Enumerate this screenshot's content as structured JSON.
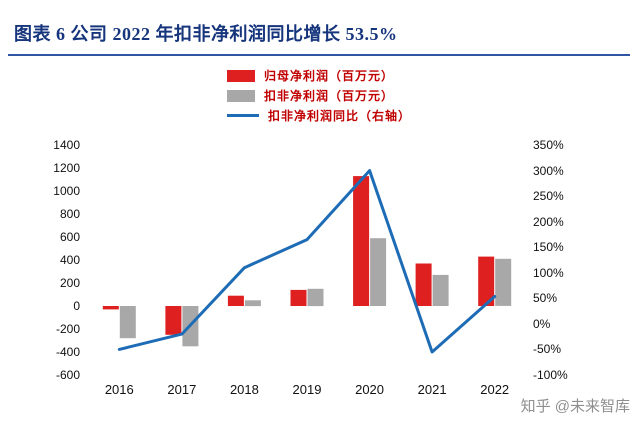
{
  "header": {
    "title": "图表 6  公司 2022 年扣非净利润同比增长 53.5%"
  },
  "legend": [
    {
      "label": "归母净利润（百万元）",
      "type": "bar",
      "color": "#df2020"
    },
    {
      "label": "扣非净利润（百万元）",
      "type": "bar",
      "color": "#a8a8a8"
    },
    {
      "label": "扣非净利润同比（右轴）",
      "type": "line",
      "color": "#1e6cb5"
    }
  ],
  "chart_data": {
    "type": "combo-bar-line",
    "title": "图表 6  公司 2022 年扣非净利润同比增长 53.5%",
    "categories": [
      "2016",
      "2017",
      "2018",
      "2019",
      "2020",
      "2021",
      "2022"
    ],
    "series": [
      {
        "name": "归母净利润（百万元）",
        "type": "bar",
        "axis": "left",
        "color": "#df2020",
        "values": [
          -30,
          -250,
          90,
          140,
          1130,
          370,
          430
        ]
      },
      {
        "name": "扣非净利润（百万元）",
        "type": "bar",
        "axis": "left",
        "color": "#a8a8a8",
        "values": [
          -280,
          -350,
          50,
          150,
          590,
          270,
          410
        ]
      },
      {
        "name": "扣非净利润同比（右轴）",
        "type": "line",
        "axis": "right",
        "color": "#1e6cb5",
        "values": [
          -50,
          -20,
          110,
          165,
          300,
          -55,
          53.5
        ]
      }
    ],
    "left_axis": {
      "min": -600,
      "max": 1400,
      "step": 200,
      "ticks": [
        "1400",
        "1200",
        "1000",
        "800",
        "600",
        "400",
        "200",
        "0",
        "-200",
        "-400",
        "-600"
      ]
    },
    "right_axis": {
      "min": -100,
      "max": 350,
      "step": 50,
      "ticks": [
        "350%",
        "300%",
        "250%",
        "200%",
        "150%",
        "100%",
        "50%",
        "0%",
        "-50%",
        "-100%"
      ]
    },
    "grid": false,
    "legend_position": "top-center"
  },
  "watermark": "知乎 @未来智库",
  "colors": {
    "title": "#16357c",
    "title_rule": "#2f55a4",
    "legend_text": "#c00000",
    "bar_red": "#df2020",
    "bar_gray": "#a8a8a8",
    "line_blue": "#1e6cb5",
    "watermark": "#8f8f8f"
  }
}
